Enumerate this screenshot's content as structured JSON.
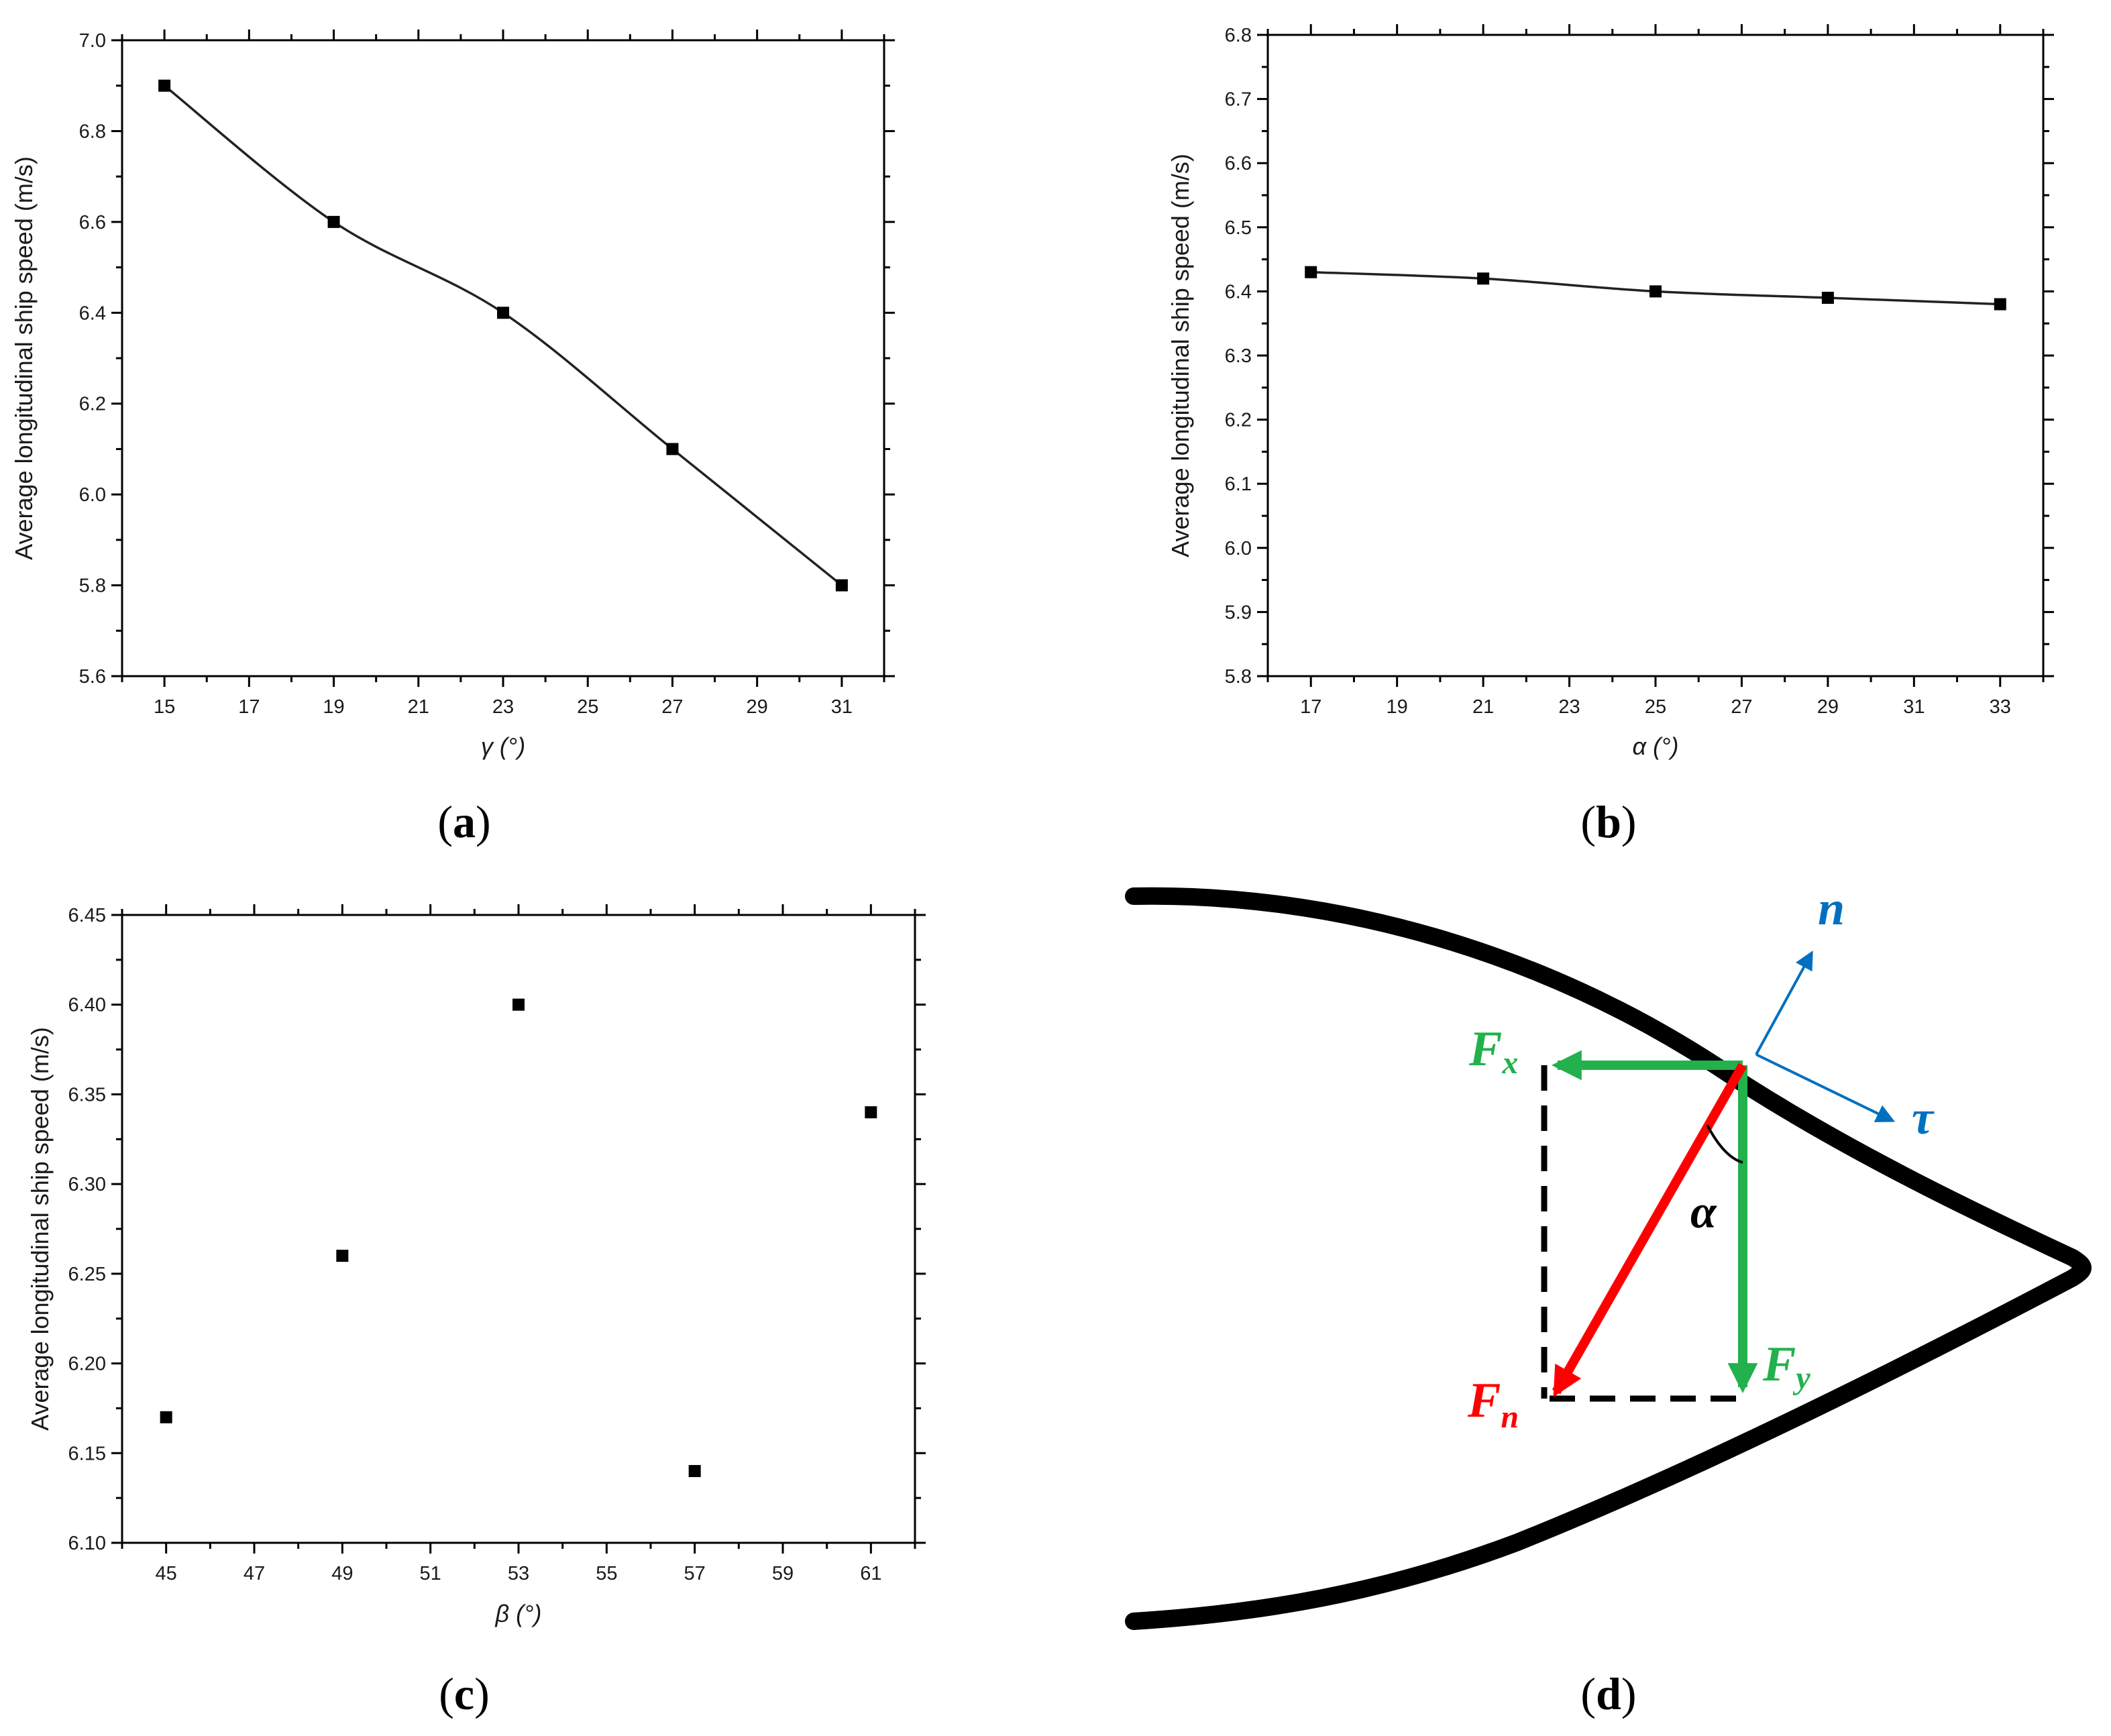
{
  "chart_data": [
    {
      "type": "line",
      "panel": "a",
      "ylabel": "Average longitudinal ship speed (m/s)",
      "xlabel": "γ (°)",
      "x": [
        15,
        19,
        23,
        27,
        31
      ],
      "values": [
        6.9,
        6.6,
        6.4,
        6.1,
        5.8
      ],
      "xlim": [
        14,
        32
      ],
      "ylim": [
        5.6,
        7.0
      ],
      "xticks": [
        15,
        17,
        19,
        21,
        23,
        25,
        27,
        29,
        31
      ],
      "yticks": [
        5.6,
        5.8,
        6.0,
        6.2,
        6.4,
        6.6,
        6.8,
        7.0
      ],
      "ydecimals": 1,
      "line": true,
      "grid": false
    },
    {
      "type": "line",
      "panel": "b",
      "ylabel": "Average longitudinal ship speed (m/s)",
      "xlabel": "α (°)",
      "x": [
        17,
        21,
        25,
        29,
        33
      ],
      "values": [
        6.43,
        6.42,
        6.4,
        6.39,
        6.38
      ],
      "xlim": [
        16,
        34
      ],
      "ylim": [
        5.8,
        6.8
      ],
      "xticks": [
        17,
        19,
        21,
        23,
        25,
        27,
        29,
        31,
        33
      ],
      "yticks": [
        5.8,
        5.9,
        6.0,
        6.1,
        6.2,
        6.3,
        6.4,
        6.5,
        6.6,
        6.7,
        6.8
      ],
      "ydecimals": 1,
      "line": true,
      "grid": false
    },
    {
      "type": "scatter",
      "panel": "c",
      "ylabel": "Average longitudinal ship speed (m/s)",
      "xlabel": "β (°)",
      "x": [
        45,
        49,
        53,
        57,
        61
      ],
      "values": [
        6.17,
        6.26,
        6.4,
        6.14,
        6.34
      ],
      "xlim": [
        44,
        62
      ],
      "ylim": [
        6.1,
        6.45
      ],
      "xticks": [
        45,
        47,
        49,
        51,
        53,
        55,
        57,
        59,
        61
      ],
      "yticks": [
        6.1,
        6.15,
        6.2,
        6.25,
        6.3,
        6.35,
        6.4,
        6.45
      ],
      "ydecimals": 2,
      "line": false,
      "grid": false
    }
  ],
  "panel_labels": {
    "a": {
      "open": "(",
      "letter": "a",
      "close": ")"
    },
    "b": {
      "open": "(",
      "letter": "b",
      "close": ")"
    },
    "c": {
      "open": "(",
      "letter": "c",
      "close": ")"
    },
    "d": {
      "open": "(",
      "letter": "d",
      "close": ")"
    }
  },
  "diagram": {
    "n": "n",
    "tau": "τ",
    "Fx": {
      "base": "F",
      "sub": "x"
    },
    "Fy": {
      "base": "F",
      "sub": "y"
    },
    "Fn": {
      "base": "F",
      "sub": "n"
    },
    "alpha": "α",
    "colors": {
      "green": "#22b14c",
      "red": "#ff0000",
      "blue": "#0070c0",
      "black": "#000000"
    }
  }
}
